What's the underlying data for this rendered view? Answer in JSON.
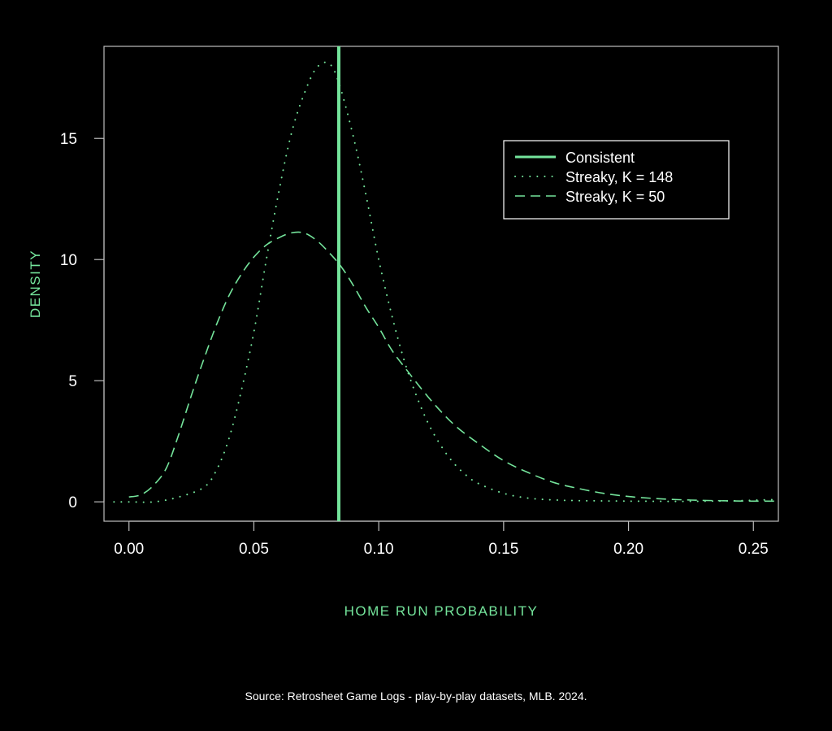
{
  "chart_data": {
    "type": "line",
    "title": "",
    "xlabel": "HOME RUN PROBABILITY",
    "ylabel": "DENSITY",
    "xlim": [
      -0.01,
      0.26
    ],
    "ylim": [
      -0.8,
      18.8
    ],
    "xticks": [
      0.0,
      0.05,
      0.1,
      0.15,
      0.2,
      0.25
    ],
    "xtick_labels": [
      "0.00",
      "0.05",
      "0.10",
      "0.15",
      "0.20",
      "0.25"
    ],
    "yticks": [
      0,
      5,
      10,
      15
    ],
    "ytick_labels": [
      "0",
      "5",
      "10",
      "15"
    ],
    "grid": false,
    "legend_position": "top-right",
    "vline": {
      "name": "Consistent",
      "x": 0.084
    },
    "series": [
      {
        "name": "Streaky, K = 148",
        "style": "dotted",
        "x": [
          -0.006,
          0.0,
          0.01,
          0.02,
          0.03,
          0.035,
          0.04,
          0.045,
          0.05,
          0.055,
          0.06,
          0.065,
          0.07,
          0.075,
          0.08,
          0.084,
          0.09,
          0.095,
          0.1,
          0.105,
          0.11,
          0.115,
          0.12,
          0.125,
          0.13,
          0.135,
          0.14,
          0.15,
          0.16,
          0.17,
          0.18,
          0.2,
          0.22,
          0.24,
          0.26
        ],
        "y": [
          0.0,
          0.0,
          0.0,
          0.2,
          0.6,
          1.3,
          2.6,
          4.6,
          7.0,
          10.0,
          12.8,
          15.2,
          16.8,
          17.9,
          18.1,
          17.3,
          15.0,
          12.6,
          10.0,
          7.8,
          5.9,
          4.4,
          3.2,
          2.3,
          1.6,
          1.1,
          0.75,
          0.35,
          0.15,
          0.08,
          0.05,
          0.03,
          0.02,
          0.04,
          0.1
        ]
      },
      {
        "name": "Streaky, K = 50",
        "style": "dashed",
        "x": [
          0.0,
          0.005,
          0.01,
          0.015,
          0.02,
          0.025,
          0.03,
          0.035,
          0.04,
          0.045,
          0.05,
          0.055,
          0.06,
          0.065,
          0.07,
          0.075,
          0.08,
          0.085,
          0.09,
          0.095,
          0.1,
          0.105,
          0.11,
          0.12,
          0.13,
          0.14,
          0.15,
          0.16,
          0.17,
          0.18,
          0.19,
          0.2,
          0.21,
          0.22,
          0.23,
          0.24,
          0.25,
          0.26
        ],
        "y": [
          0.2,
          0.3,
          0.7,
          1.4,
          2.8,
          4.4,
          5.9,
          7.3,
          8.5,
          9.4,
          10.1,
          10.6,
          10.9,
          11.1,
          11.1,
          10.8,
          10.3,
          9.7,
          8.9,
          8.0,
          7.2,
          6.3,
          5.6,
          4.3,
          3.2,
          2.4,
          1.7,
          1.2,
          0.8,
          0.55,
          0.35,
          0.22,
          0.14,
          0.09,
          0.06,
          0.04,
          0.03,
          0.03
        ]
      }
    ],
    "color": "#74e49b"
  },
  "source": "Source: Retrosheet Game Logs - play-by-play datasets, MLB. 2024."
}
